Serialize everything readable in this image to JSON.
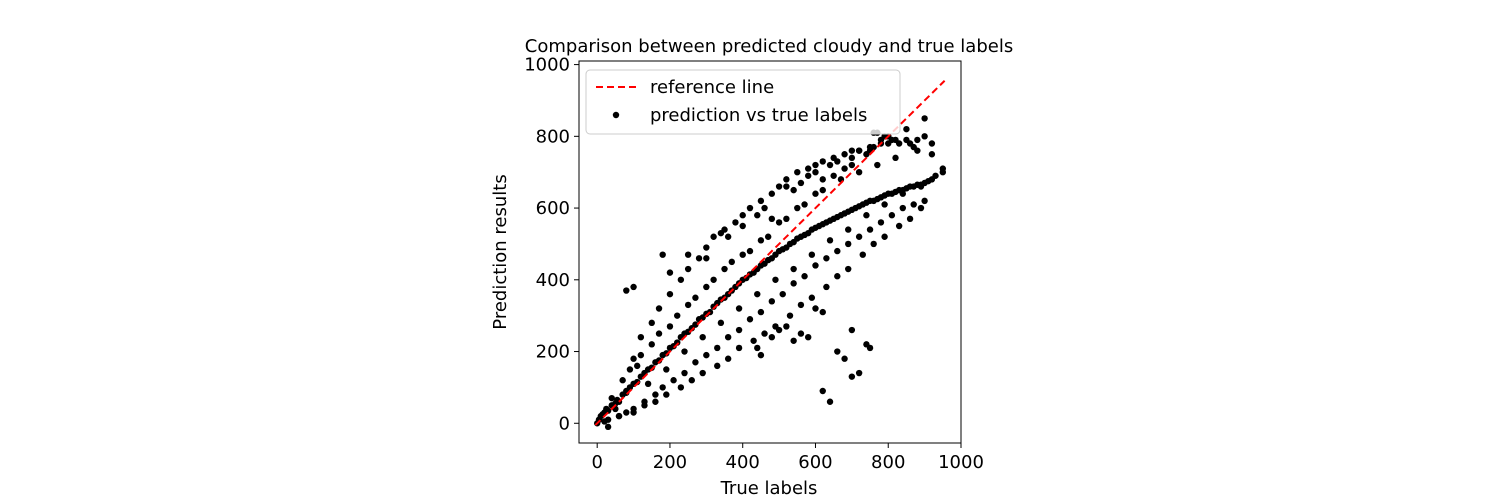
{
  "chart_data": {
    "type": "scatter",
    "title": "Comparison between predicted cloudy and true labels",
    "xlabel": "True labels",
    "ylabel": "Prediction results",
    "xlim": [
      -50,
      1000
    ],
    "ylim": [
      -55,
      1010
    ],
    "xticks": [
      0,
      200,
      400,
      600,
      800,
      1000
    ],
    "yticks": [
      0,
      200,
      400,
      600,
      800,
      1000
    ],
    "grid": false,
    "legend_position": "top-left",
    "series": [
      {
        "name": "reference line",
        "kind": "line",
        "style": "dashed",
        "color": "#ff0000",
        "x": [
          -5,
          955
        ],
        "y": [
          -5,
          955
        ]
      },
      {
        "name": "prediction vs true labels",
        "kind": "scatter",
        "color": "#000000",
        "x": [
          0,
          5,
          10,
          15,
          20,
          25,
          30,
          40,
          50,
          55,
          60,
          70,
          80,
          90,
          100,
          110,
          120,
          130,
          140,
          150,
          160,
          170,
          180,
          190,
          200,
          210,
          220,
          230,
          240,
          250,
          260,
          270,
          280,
          290,
          300,
          310,
          320,
          330,
          340,
          350,
          360,
          370,
          380,
          390,
          400,
          410,
          420,
          430,
          440,
          450,
          460,
          470,
          480,
          490,
          500,
          510,
          520,
          530,
          540,
          550,
          560,
          570,
          580,
          590,
          600,
          610,
          620,
          630,
          640,
          650,
          660,
          670,
          680,
          690,
          700,
          710,
          720,
          730,
          740,
          750,
          760,
          770,
          780,
          790,
          800,
          810,
          820,
          830,
          840,
          850,
          860,
          870,
          880,
          890,
          900,
          910,
          920,
          930,
          950,
          100,
          120,
          150,
          170,
          200,
          230,
          250,
          280,
          300,
          320,
          350,
          380,
          400,
          420,
          450,
          480,
          500,
          520,
          550,
          580,
          600,
          620,
          650,
          680,
          700,
          720,
          750,
          780,
          800,
          820,
          850,
          880,
          900,
          60,
          80,
          100,
          130,
          160,
          180,
          210,
          240,
          270,
          300,
          330,
          360,
          390,
          420,
          450,
          480,
          510,
          540,
          570,
          600,
          630,
          660,
          690,
          720,
          750,
          780,
          810,
          840,
          870,
          900,
          180,
          200,
          250,
          300,
          340,
          360,
          400,
          440,
          460,
          480,
          520,
          540,
          560,
          580,
          600,
          620,
          640,
          660,
          680,
          700,
          720,
          740,
          760,
          780,
          800,
          830,
          860,
          880,
          920,
          950,
          90,
          110,
          150,
          200,
          250,
          300,
          350,
          400,
          450,
          500,
          550,
          600,
          650,
          700,
          750,
          800,
          850,
          900,
          40,
          70,
          120,
          170,
          220,
          270,
          320,
          370,
          420,
          470,
          520,
          570,
          620,
          670,
          720,
          770,
          820,
          870,
          920,
          50,
          80,
          140,
          190,
          240,
          290,
          340,
          390,
          440,
          490,
          540,
          590,
          640,
          690,
          740,
          790,
          840,
          890,
          30,
          60,
          100,
          130,
          160,
          190,
          230,
          260,
          290,
          330,
          360,
          390,
          430,
          460,
          490,
          530,
          560,
          590,
          630,
          660,
          690,
          730,
          760,
          790,
          830,
          860,
          890,
          760,
          770,
          790,
          810,
          440,
          450,
          480,
          500,
          520,
          540,
          560,
          580,
          600,
          620,
          660,
          680,
          700,
          740,
          750,
          620,
          640,
          80,
          100,
          30,
          20,
          700,
          720
        ],
        "y": [
          0,
          10,
          20,
          25,
          30,
          40,
          35,
          50,
          55,
          65,
          60,
          80,
          85,
          100,
          110,
          115,
          130,
          140,
          150,
          155,
          170,
          175,
          190,
          195,
          210,
          215,
          225,
          240,
          250,
          255,
          265,
          275,
          290,
          295,
          305,
          310,
          325,
          335,
          345,
          350,
          360,
          370,
          380,
          390,
          400,
          405,
          415,
          420,
          430,
          440,
          445,
          455,
          460,
          470,
          480,
          485,
          490,
          500,
          505,
          515,
          520,
          525,
          530,
          540,
          545,
          550,
          555,
          560,
          565,
          570,
          575,
          580,
          585,
          590,
          595,
          600,
          605,
          610,
          615,
          620,
          620,
          625,
          630,
          635,
          640,
          640,
          645,
          650,
          650,
          655,
          660,
          660,
          665,
          665,
          670,
          675,
          680,
          690,
          710,
          180,
          240,
          280,
          320,
          360,
          400,
          430,
          460,
          490,
          520,
          540,
          560,
          580,
          600,
          620,
          640,
          660,
          680,
          700,
          710,
          720,
          730,
          740,
          750,
          760,
          760,
          770,
          780,
          780,
          790,
          790,
          790,
          800,
          20,
          30,
          40,
          60,
          80,
          100,
          120,
          140,
          170,
          190,
          210,
          240,
          260,
          290,
          310,
          340,
          360,
          390,
          410,
          440,
          460,
          480,
          500,
          520,
          540,
          560,
          580,
          600,
          610,
          620,
          470,
          420,
          470,
          460,
          530,
          520,
          550,
          580,
          600,
          570,
          660,
          650,
          670,
          690,
          700,
          680,
          720,
          730,
          710,
          740,
          760,
          750,
          770,
          790,
          800,
          780,
          780,
          760,
          750,
          700,
          150,
          160,
          220,
          270,
          330,
          380,
          430,
          470,
          510,
          560,
          600,
          640,
          690,
          720,
          760,
          800,
          820,
          850,
          70,
          120,
          190,
          250,
          300,
          350,
          400,
          450,
          480,
          520,
          570,
          610,
          650,
          680,
          700,
          720,
          740,
          770,
          780,
          40,
          90,
          110,
          150,
          200,
          240,
          280,
          320,
          360,
          400,
          430,
          470,
          510,
          540,
          580,
          610,
          640,
          660,
          10,
          20,
          30,
          50,
          60,
          80,
          100,
          120,
          140,
          160,
          180,
          210,
          230,
          250,
          270,
          300,
          330,
          350,
          380,
          410,
          430,
          470,
          500,
          520,
          550,
          570,
          600,
          810,
          810,
          800,
          790,
          210,
          190,
          240,
          260,
          270,
          230,
          250,
          240,
          320,
          310,
          200,
          180,
          260,
          220,
          210,
          90,
          60,
          370,
          380,
          -10,
          5,
          130,
          140
        ]
      }
    ]
  }
}
